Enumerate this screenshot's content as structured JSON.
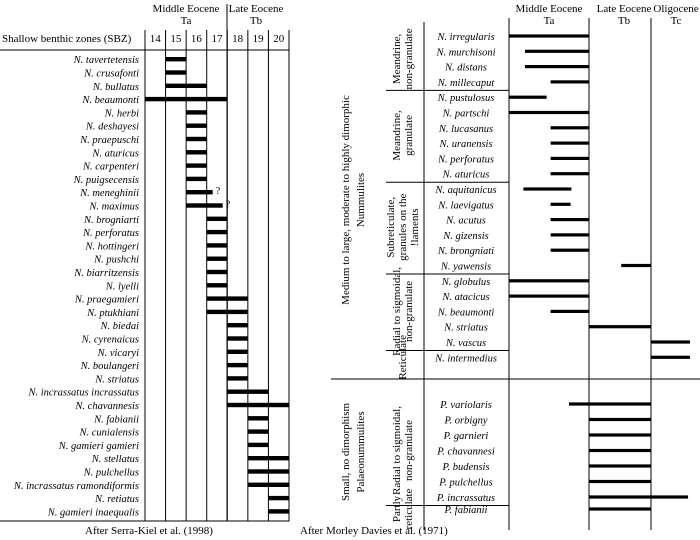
{
  "left": {
    "epochs": [
      "Middle Eocene",
      "Late Eocene"
    ],
    "stages": [
      "Ta",
      "Tb"
    ],
    "zone_header": "Shallow benthic zones (SBZ)",
    "zones": [
      "14",
      "15",
      "16",
      "17",
      "18",
      "19",
      "20"
    ],
    "credit": "After Serra-Kiel et al. (1998)",
    "species": [
      {
        "name": "N. tavertetensis",
        "range": [
          15,
          15
        ]
      },
      {
        "name": "N. crusafonti",
        "range": [
          15,
          15
        ]
      },
      {
        "name": "N. bullatus",
        "range": [
          15,
          16
        ]
      },
      {
        "name": "N. beaumonti",
        "range": [
          14,
          17
        ]
      },
      {
        "name": "N. herbi",
        "range": [
          16,
          16
        ]
      },
      {
        "name": "N. deshayesi",
        "range": [
          16,
          16
        ]
      },
      {
        "name": "N. praepuschi",
        "range": [
          16,
          16
        ]
      },
      {
        "name": "N. aturicus",
        "range": [
          16,
          16
        ]
      },
      {
        "name": "N. carpenteri",
        "range": [
          16,
          16
        ]
      },
      {
        "name": "N. puigsecensis",
        "range": [
          16,
          16
        ]
      },
      {
        "name": "N. meneghinii",
        "range": [
          16,
          17
        ],
        "note": "?"
      },
      {
        "name": "N. maximus",
        "range": [
          16,
          17
        ],
        "note": "?"
      },
      {
        "name": "N. brogniarti",
        "range": [
          17,
          17
        ]
      },
      {
        "name": "N. perforatus",
        "range": [
          17,
          17
        ]
      },
      {
        "name": "N. hottingeri",
        "range": [
          17,
          17
        ]
      },
      {
        "name": "N. pushchi",
        "range": [
          17,
          17
        ]
      },
      {
        "name": "N. biarritzensis",
        "range": [
          17,
          17
        ]
      },
      {
        "name": "N. lyelli",
        "range": [
          17,
          17
        ]
      },
      {
        "name": "N. praegamieri",
        "range": [
          17,
          18
        ]
      },
      {
        "name": "N. ptukhiani",
        "range": [
          17,
          18
        ]
      },
      {
        "name": "N. biedai",
        "range": [
          18,
          18
        ]
      },
      {
        "name": "N. cyrenaicus",
        "range": [
          18,
          18
        ]
      },
      {
        "name": "N. vicaryi",
        "range": [
          18,
          18
        ]
      },
      {
        "name": "N. boulangeri",
        "range": [
          18,
          18
        ]
      },
      {
        "name": "N. striatus",
        "range": [
          18,
          18
        ]
      },
      {
        "name": "N. incrassatus incrassatus",
        "range": [
          18,
          19
        ]
      },
      {
        "name": "N. chavannesis",
        "range": [
          18,
          20
        ]
      },
      {
        "name": "N. fabianii",
        "range": [
          19,
          19
        ]
      },
      {
        "name": "N. cunialensis",
        "range": [
          19,
          19
        ]
      },
      {
        "name": "N. gamieri gamieri",
        "range": [
          19,
          19
        ]
      },
      {
        "name": "N. stellatus",
        "range": [
          19,
          20
        ]
      },
      {
        "name": "N. pulchellus",
        "range": [
          19,
          20
        ]
      },
      {
        "name": "N. incrassatus ramondiformis",
        "range": [
          19,
          20
        ]
      },
      {
        "name": "N. retiatus",
        "range": [
          20,
          20
        ]
      },
      {
        "name": "N. gamieri inaequalis",
        "range": [
          20,
          20
        ]
      }
    ]
  },
  "right": {
    "epochs": [
      {
        "name": "Middle Eocene",
        "stage": "Ta"
      },
      {
        "name": "Late Eocene",
        "stage": "Tb"
      },
      {
        "name": "Oligocene",
        "stage": "Tc"
      }
    ],
    "credit": "After Morley Davies et al. (1971)",
    "group_labels": [
      "Medium to large, moderate to highly dimorphic",
      "Nummulites",
      "Small, no dimorphism",
      "Palaeonummulites"
    ],
    "subgroups": [
      {
        "label": [
          "Meandrine,",
          "non-granulate"
        ],
        "rows": [
          0,
          3
        ]
      },
      {
        "label": [
          "Meandrine,",
          "granulate"
        ],
        "rows": [
          4,
          9
        ]
      },
      {
        "label": [
          "Subreticulate,",
          "granules on the",
          "!laments"
        ],
        "rows": [
          10,
          15
        ]
      },
      {
        "label": [
          "Radial to sigmoidal,",
          "non-granulate"
        ],
        "rows": [
          16,
          20
        ]
      },
      {
        "label": [
          "Reticulate"
        ],
        "rows": [
          21,
          21
        ]
      },
      {
        "label": [
          "Radial to sigmoidal,",
          "non-granulate"
        ],
        "rows": [
          22,
          28
        ]
      },
      {
        "label": [
          "Partly",
          "reticulate"
        ],
        "rows": [
          29,
          29
        ]
      }
    ],
    "species": [
      {
        "name": "N. irregularis",
        "range": [
          0.0,
          1.0
        ]
      },
      {
        "name": "N. murchisoni",
        "range": [
          0.2,
          1.0
        ]
      },
      {
        "name": "N. distans",
        "range": [
          0.2,
          1.0
        ]
      },
      {
        "name": "N. millecaput",
        "range": [
          0.52,
          1.0
        ]
      },
      {
        "name": "N. pustulosus",
        "range": [
          0.0,
          0.47
        ]
      },
      {
        "name": "N. partschi",
        "range": [
          0.0,
          1.0
        ]
      },
      {
        "name": "N. lucasanus",
        "range": [
          0.52,
          1.0
        ]
      },
      {
        "name": "N. uranensis",
        "range": [
          0.52,
          1.0
        ]
      },
      {
        "name": "N. perforatus",
        "range": [
          0.52,
          1.0
        ]
      },
      {
        "name": "N. aturicus",
        "range": [
          0.52,
          1.0
        ]
      },
      {
        "name": "N. aquitanicus",
        "range": [
          0.18,
          0.78
        ]
      },
      {
        "name": "N. laevigatus",
        "range": [
          0.52,
          0.77
        ]
      },
      {
        "name": "N. acutus",
        "range": [
          0.52,
          1.0
        ]
      },
      {
        "name": "N. gizensis",
        "range": [
          0.52,
          1.0
        ]
      },
      {
        "name": "N. brongniati",
        "range": [
          0.52,
          1.0
        ]
      },
      {
        "name": "N. yawensis",
        "range": [
          1.52,
          2.0
        ]
      },
      {
        "name": "N. globulus",
        "range": [
          0.0,
          1.0
        ]
      },
      {
        "name": "N. atacicus",
        "range": [
          0.0,
          1.0
        ]
      },
      {
        "name": "N. beaumonti",
        "range": [
          0.52,
          1.0
        ]
      },
      {
        "name": "N. striatus",
        "range": [
          1.0,
          2.0
        ]
      },
      {
        "name": "N. vascus",
        "range": [
          2.0,
          3.0
        ]
      },
      {
        "name": "N. intermedius",
        "range": [
          2.0,
          3.0
        ]
      },
      {
        "name": "P. variolaris",
        "range": [
          0.75,
          2.0
        ]
      },
      {
        "name": "P. orbigny",
        "range": [
          1.0,
          2.0
        ]
      },
      {
        "name": "P. garnieri",
        "range": [
          1.0,
          2.0
        ]
      },
      {
        "name": "P. chavannesi",
        "range": [
          1.0,
          2.0
        ]
      },
      {
        "name": "P. budensis",
        "range": [
          1.0,
          2.0
        ]
      },
      {
        "name": "P. pulchellus",
        "range": [
          1.0,
          2.0
        ]
      },
      {
        "name": "P. incrassatus",
        "range": [
          1.0,
          2.95
        ]
      },
      {
        "name": "P. fabianii",
        "range": [
          1.0,
          2.0
        ]
      }
    ]
  }
}
